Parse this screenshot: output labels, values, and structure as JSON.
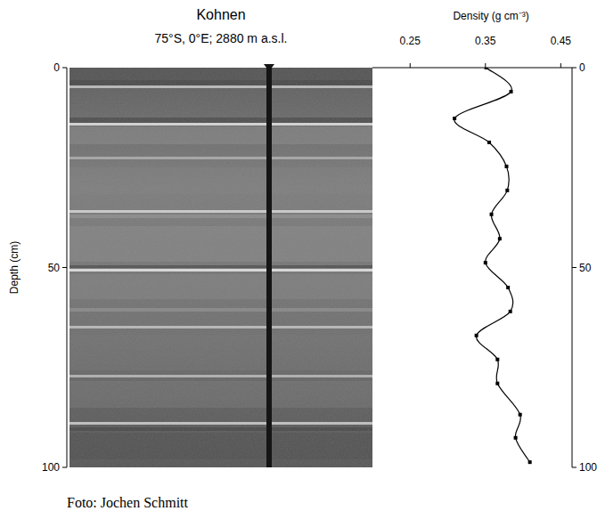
{
  "chart_data": {
    "type": "line",
    "title": "Kohnen",
    "subtitle": "75°S, 0°E; 2880 m a.s.l.",
    "x_label": "Density (g cm⁻³)",
    "y_label": "Depth (cm)",
    "caption": "Foto: Jochen Schmitt",
    "y": [
      0,
      6,
      12.7,
      18.7,
      24.7,
      30.7,
      36.7,
      42.8,
      48.8,
      55,
      61,
      67,
      73,
      79,
      86.8,
      92.6,
      98.7
    ],
    "values": [
      0.351,
      0.384,
      0.309,
      0.355,
      0.378,
      0.379,
      0.358,
      0.369,
      0.35,
      0.38,
      0.383,
      0.338,
      0.366,
      0.366,
      0.396,
      0.39,
      0.409
    ],
    "color": "#000000",
    "marker": "square",
    "line_style": "solid",
    "xlim": [
      0.2,
      0.465
    ],
    "xticks": [
      0.25,
      0.35,
      0.45
    ],
    "ylim": [
      0,
      100
    ],
    "yticks": [
      0,
      50,
      100
    ],
    "grid": false
  }
}
